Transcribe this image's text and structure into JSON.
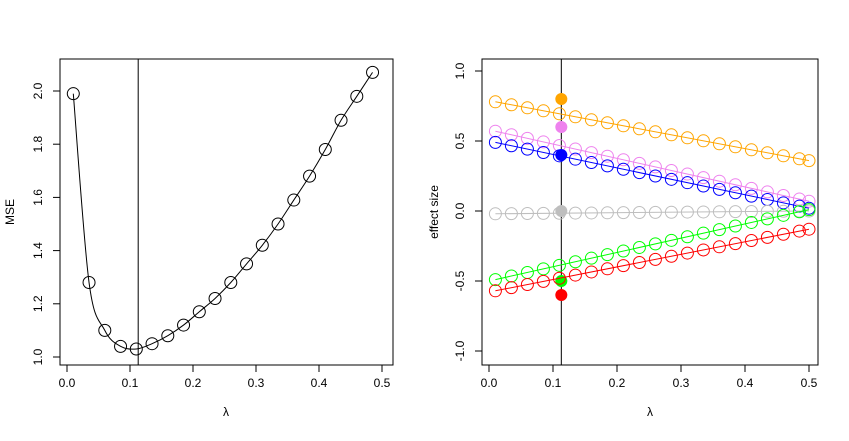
{
  "chart_data": [
    {
      "type": "line",
      "title": "",
      "xlabel": "λ",
      "ylabel": "MSE",
      "xlim": [
        0,
        0.5
      ],
      "ylim": [
        1.0,
        2.1
      ],
      "x_ticks": [
        0.0,
        0.1,
        0.2,
        0.3,
        0.4,
        0.5
      ],
      "x_tick_labels": [
        "0.0",
        "0.1",
        "0.2",
        "0.3",
        "0.4",
        "0.5"
      ],
      "y_ticks": [
        1.0,
        1.2,
        1.4,
        1.6,
        1.8,
        2.0
      ],
      "y_tick_labels": [
        "1.0",
        "1.2",
        "1.4",
        "1.6",
        "1.8",
        "2.0"
      ],
      "grid": false,
      "vline": 0.113,
      "series": [
        {
          "color": "#000000",
          "x": [
            0.01,
            0.035,
            0.06,
            0.085,
            0.11,
            0.135,
            0.16,
            0.185,
            0.21,
            0.235,
            0.26,
            0.285,
            0.31,
            0.335,
            0.36,
            0.385,
            0.41,
            0.435,
            0.46,
            0.485
          ],
          "y": [
            1.99,
            1.28,
            1.1,
            1.04,
            1.03,
            1.05,
            1.08,
            1.12,
            1.17,
            1.22,
            1.28,
            1.35,
            1.42,
            1.5,
            1.59,
            1.68,
            1.78,
            1.89,
            1.98,
            2.07
          ]
        }
      ]
    },
    {
      "type": "line",
      "title": "",
      "xlabel": "λ",
      "ylabel": "effect size",
      "xlim": [
        0,
        0.5
      ],
      "ylim": [
        -1.0,
        1.0
      ],
      "x_ticks": [
        0.0,
        0.1,
        0.2,
        0.3,
        0.4,
        0.5
      ],
      "x_tick_labels": [
        "0.0",
        "0.1",
        "0.2",
        "0.3",
        "0.4",
        "0.5"
      ],
      "y_ticks": [
        -1.0,
        -0.5,
        0.0,
        0.5,
        1.0
      ],
      "y_tick_labels": [
        "-1.0",
        "-0.5",
        "0.0",
        "0.5",
        "1.0"
      ],
      "grid": false,
      "vline": 0.113,
      "series": [
        {
          "color": "#ffa500",
          "true_value": 0.8,
          "start": 0.78,
          "end": 0.36
        },
        {
          "color": "#ee82ee",
          "true_value": 0.6,
          "start": 0.57,
          "end": 0.07
        },
        {
          "color": "#0000ff",
          "true_value": 0.4,
          "start": 0.49,
          "end": 0.02
        },
        {
          "color": "#bebebe",
          "true_value": 0.0,
          "start": -0.02,
          "end": 0.0
        },
        {
          "color": "#00ff00",
          "true_value": -0.5,
          "start": -0.49,
          "end": 0.01
        },
        {
          "color": "#ff0000",
          "true_value": -0.6,
          "start": -0.57,
          "end": -0.13
        }
      ],
      "x": [
        0.01,
        0.035,
        0.06,
        0.085,
        0.11,
        0.135,
        0.16,
        0.185,
        0.21,
        0.235,
        0.26,
        0.285,
        0.31,
        0.335,
        0.36,
        0.385,
        0.41,
        0.435,
        0.46,
        0.485,
        0.5
      ]
    }
  ]
}
